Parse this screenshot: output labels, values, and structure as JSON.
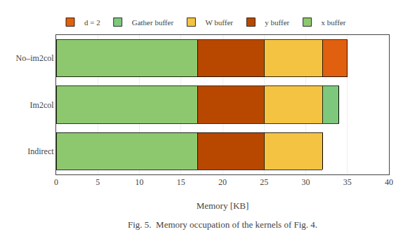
{
  "chart_data": {
    "type": "bar",
    "orientation": "horizontal",
    "stacked": true,
    "categories": [
      "No–im2col",
      "Im2col",
      "Indirect"
    ],
    "series": [
      {
        "name": "x buffer",
        "color": "#8dc86e",
        "values": [
          17,
          17,
          17
        ]
      },
      {
        "name": "y buffer",
        "color": "#b84800",
        "values": [
          8,
          8,
          8
        ]
      },
      {
        "name": "W buffer",
        "color": "#f5c342",
        "values": [
          7,
          7,
          7
        ]
      },
      {
        "name": "Gather buffer",
        "color": "#7ec87e",
        "values": [
          0,
          2,
          0
        ]
      },
      {
        "name": "d = 2",
        "color": "#e06010",
        "values": [
          3,
          0,
          0
        ]
      }
    ],
    "xlabel": "Memory [KB]",
    "annotations": [
      "Fig. 5.  Memory occupation of the kernels of Fig. 4."
    ],
    "xlim": [
      0,
      40
    ],
    "xticks": [
      0,
      5,
      10,
      15,
      20,
      25,
      30,
      35,
      40
    ],
    "grid": true,
    "legend": "top left"
  }
}
